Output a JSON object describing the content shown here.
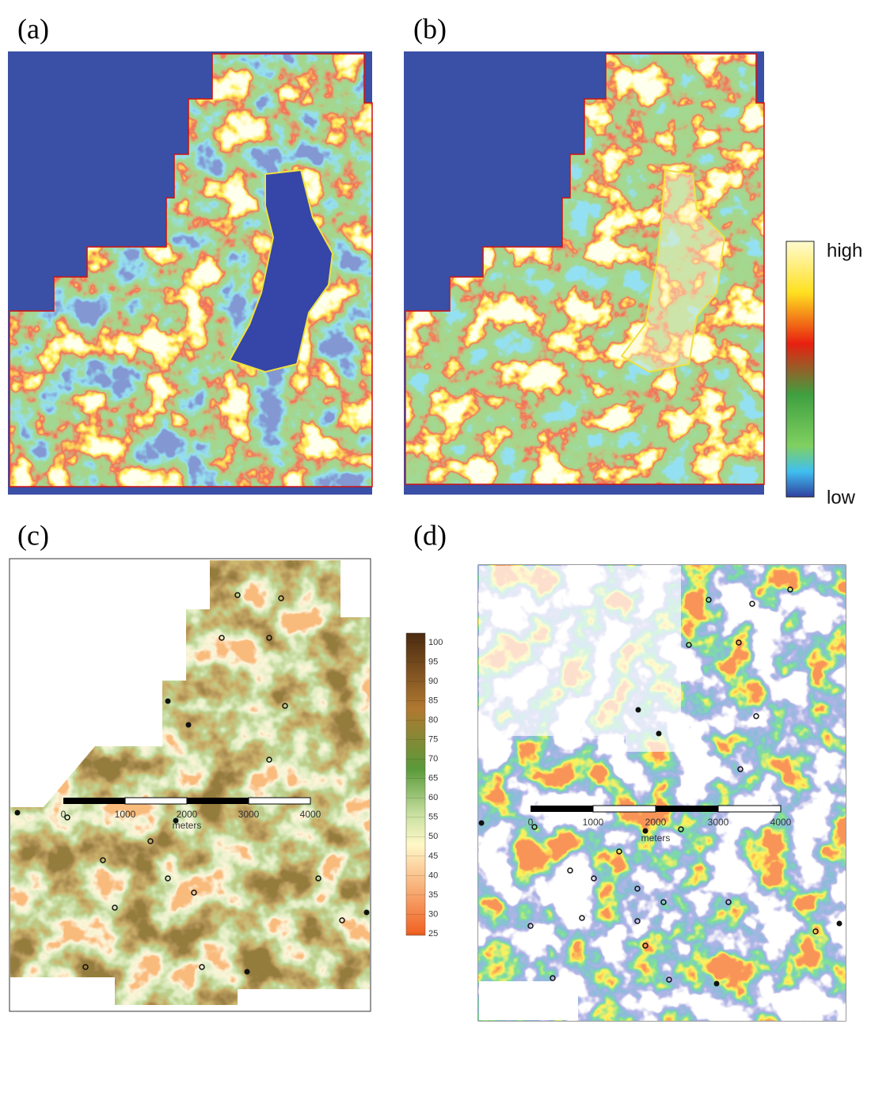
{
  "panels": [
    {
      "label": "(a)"
    },
    {
      "label": "(b)"
    },
    {
      "label": "(c)"
    },
    {
      "label": "(d)"
    }
  ],
  "colorbar_ab": {
    "high": "high",
    "low": "low"
  },
  "colorbar_c": {
    "ticks": [
      100,
      95,
      90,
      85,
      80,
      75,
      70,
      65,
      60,
      55,
      50,
      45,
      40,
      35,
      30,
      25
    ]
  },
  "scale_bars": [
    {
      "ticks": [
        0,
        1000,
        2000,
        3000,
        4000
      ],
      "unit": "meters"
    },
    {
      "ticks": [
        0,
        1000,
        2000,
        3000,
        4000
      ],
      "unit": "meters"
    }
  ]
}
